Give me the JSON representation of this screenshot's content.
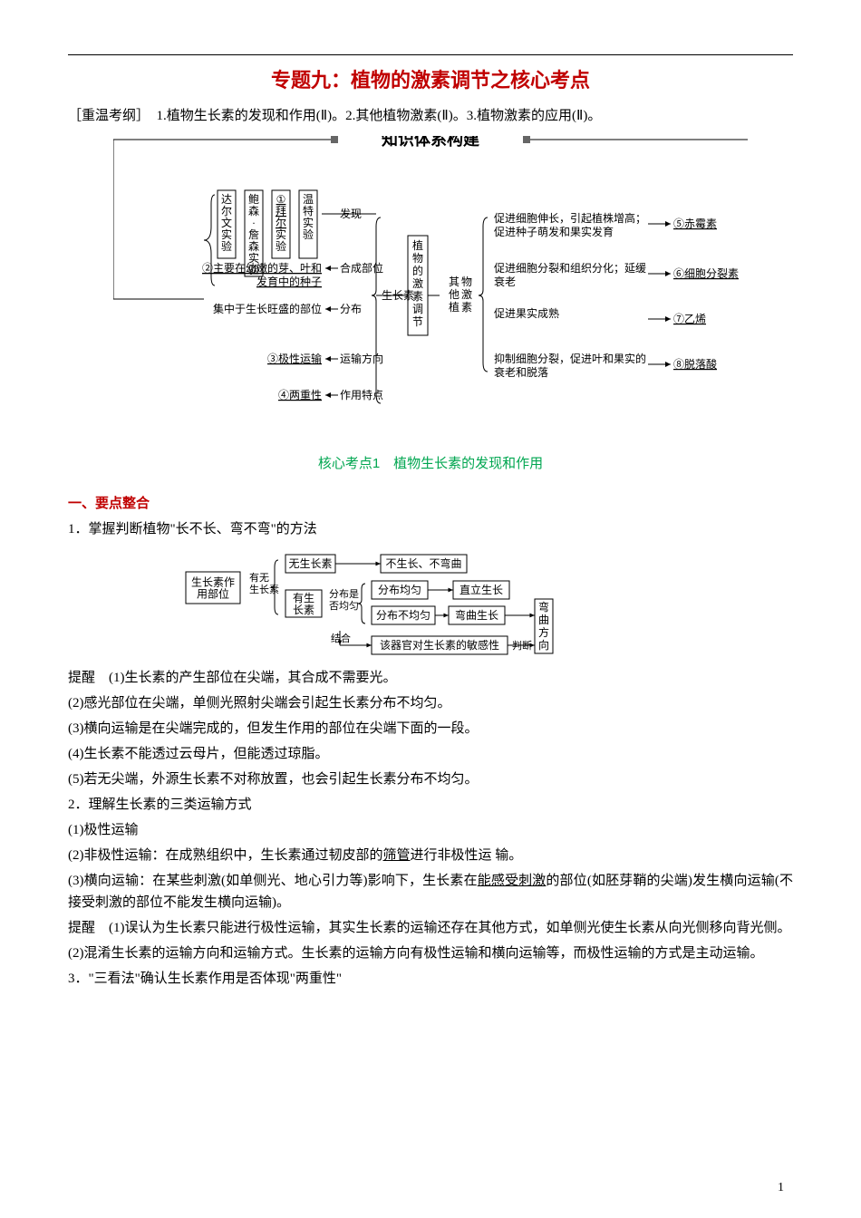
{
  "page": {
    "title": "专题九：植物的激素调节之核心考点",
    "subtitle": "［重温考纲］　1.植物生长素的发现和作用(Ⅱ)。2.其他植物激素(Ⅱ)。3.植物激素的应用(Ⅱ)。",
    "page_number": "1"
  },
  "diagram1": {
    "header": "知识体系构建",
    "center": "植物的激素调节",
    "left_branch_label": "生长素",
    "right_branch_label": "其他植物激素",
    "experiments": [
      "达尔文实验",
      "鲍森·詹森实验",
      "①拜尔实验",
      "温特实验"
    ],
    "discover": "发现",
    "left_items": [
      {
        "left": "②主要在幼嫩的芽、叶和发育中的种子",
        "right": "合成部位",
        "underline_left": true
      },
      {
        "left": "集中于生长旺盛的部位",
        "right": "分布"
      },
      {
        "left": "③极性运输",
        "right": "运输方向",
        "underline_left": true
      },
      {
        "left": "④两重性",
        "right": "作用特点",
        "underline_left": true
      }
    ],
    "right_items": [
      {
        "desc": "促进细胞伸长，引起植株增高；促进种子萌发和果实发育",
        "hormone": "⑤赤霉素"
      },
      {
        "desc": "促进细胞分裂和组织分化；延缓衰老",
        "hormone": "⑥细胞分裂素"
      },
      {
        "desc": "促进果实成熟",
        "hormone": "⑦乙烯"
      },
      {
        "desc": "抑制细胞分裂，促进叶和果实的衰老和脱落",
        "hormone": "⑧脱落酸"
      }
    ],
    "text_fontsize": 12
  },
  "section1_title": "核心考点1　植物生长素的发现和作用",
  "heading1": "一、要点整合",
  "point1_title": "1．掌握判断植物\"长不长、弯不弯\"的方法",
  "diagram2": {
    "boxes": {
      "root": "生长素作用部位",
      "q1": "有无生长素",
      "no_auxin": "无生长素",
      "yes_auxin": "有生长素",
      "q2": "分布是否均匀",
      "r1": "不生长、不弯曲",
      "even": "分布均匀",
      "uneven": "分布不均匀",
      "r2": "直立生长",
      "r3": "弯曲生长",
      "combine": "结合",
      "sensitivity": "该器官对生长素的敏感性",
      "judge": "判断",
      "direction": "弯曲方向"
    },
    "text_fontsize": 12
  },
  "body": {
    "p1": "提醒　(1)生长素的产生部位在尖端，其合成不需要光。",
    "p2": "(2)感光部位在尖端，单侧光照射尖端会引起生长素分布不均匀。",
    "p3": "(3)横向运输是在尖端完成的，但发生作用的部位在尖端下面的一段。",
    "p4": "(4)生长素不能透过云母片，但能透过琼脂。",
    "p5": "(5)若无尖端，外源生长素不对称放置，也会引起生长素分布不均匀。",
    "p6": "2．理解生长素的三类运输方式",
    "p7": "(1)极性运输",
    "p8a": "(2)非极性运输：在成熟组织中，生长素通过韧皮部的",
    "p8u": "筛管",
    "p8b": "进行非极性运 输。",
    "p9a": "(3)横向运输：在某些刺激(如单侧光、地心引力等)影响下，生长素在",
    "p9u": "能感受刺激",
    "p9b": "的部位(如胚芽鞘的尖端)发生横向运输(不接受刺激的部位不能发生横向运输)。",
    "p10": "提醒　(1)误认为生长素只能进行极性运输，其实生长素的运输还存在其他方式，如单侧光使生长素从向光侧移向背光侧。",
    "p11": "(2)混淆生长素的运输方向和运输方式。生长素的运输方向有极性运输和横向运输等，而极性运输的方式是主动运输。",
    "p12": "3．\"三看法\"确认生长素作用是否体现\"两重性\""
  },
  "style": {
    "title_color": "#c00000",
    "section_color": "#00a650",
    "body_fontsize": 15,
    "title_fontsize": 22
  }
}
